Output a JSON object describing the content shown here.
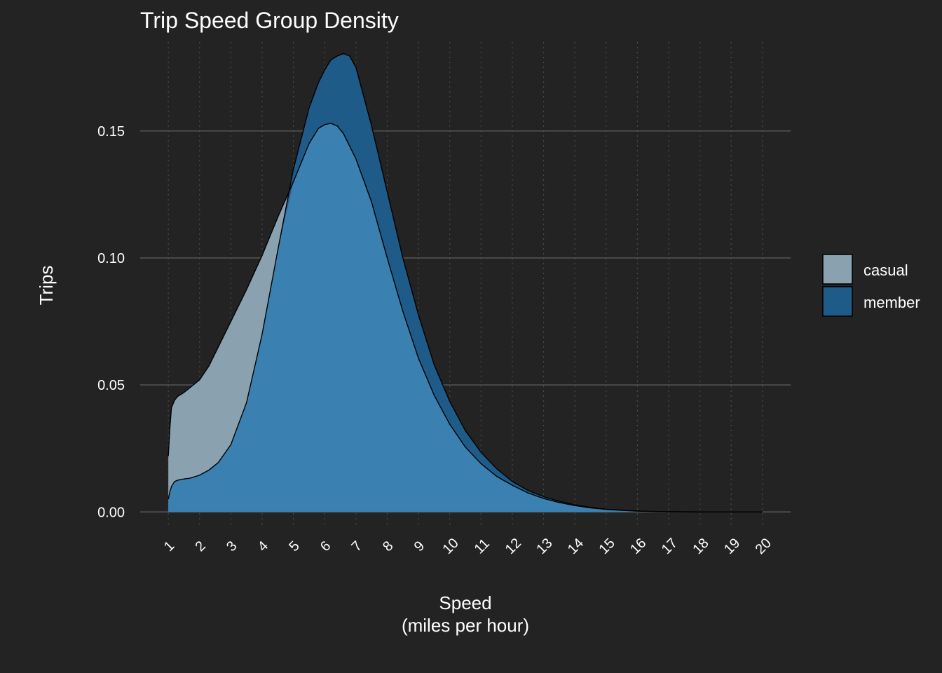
{
  "colors": {
    "background": "#232323",
    "grid_major": "#5a5a5a",
    "grid_minor": "#4a4a4a",
    "casual_fill": "#8aa2b0",
    "member_fill": "#1f5b88",
    "overlap_fill": "#3a80b0",
    "outline": "#000000",
    "text": "#ffffff"
  },
  "chart_data": {
    "type": "area",
    "title": "Trip Speed Group Density",
    "xlabel": [
      "Speed",
      "(miles per hour)"
    ],
    "ylabel": "Trips",
    "xlim": [
      0.1,
      20.9
    ],
    "ylim": [
      -0.006,
      0.185
    ],
    "x_ticks": [
      1,
      2,
      3,
      4,
      5,
      6,
      7,
      8,
      9,
      10,
      11,
      12,
      13,
      14,
      15,
      16,
      17,
      18,
      19,
      20
    ],
    "y_ticks": [
      0.0,
      0.05,
      0.1,
      0.15
    ],
    "y_tick_labels": [
      "0.00",
      "0.05",
      "0.10",
      "0.15"
    ],
    "grid": true,
    "legend_position": "right",
    "series": [
      {
        "name": "casual",
        "x": [
          1.0,
          1.05,
          1.1,
          1.2,
          1.3,
          1.5,
          1.7,
          2.0,
          2.3,
          2.6,
          3.0,
          3.5,
          4.0,
          4.5,
          5.0,
          5.5,
          5.8,
          6.0,
          6.2,
          6.4,
          6.6,
          6.8,
          7.0,
          7.5,
          8.0,
          8.5,
          9.0,
          9.5,
          10.0,
          10.5,
          11.0,
          11.5,
          12.0,
          12.5,
          13.0,
          13.5,
          14.0,
          14.5,
          15.0,
          15.5,
          16.0,
          16.5,
          17.0,
          17.5,
          18.0,
          18.5,
          19.0,
          19.5,
          20.0
        ],
        "values": [
          0.022,
          0.033,
          0.041,
          0.044,
          0.0455,
          0.047,
          0.049,
          0.052,
          0.0575,
          0.065,
          0.075,
          0.0875,
          0.101,
          0.116,
          0.13,
          0.145,
          0.151,
          0.1525,
          0.153,
          0.152,
          0.149,
          0.144,
          0.139,
          0.122,
          0.1,
          0.079,
          0.0605,
          0.046,
          0.0345,
          0.0255,
          0.019,
          0.014,
          0.0105,
          0.0075,
          0.0053,
          0.0037,
          0.0025,
          0.0016,
          0.001,
          0.0006,
          0.0003,
          0.0002,
          0.0001,
          5e-05,
          0.0,
          0.0,
          0.0,
          0.0,
          0.0
        ]
      },
      {
        "name": "member",
        "x": [
          1.0,
          1.05,
          1.1,
          1.2,
          1.3,
          1.5,
          1.7,
          2.0,
          2.3,
          2.6,
          3.0,
          3.5,
          4.0,
          4.5,
          5.0,
          5.5,
          5.8,
          6.0,
          6.2,
          6.4,
          6.6,
          6.8,
          7.0,
          7.5,
          8.0,
          8.5,
          9.0,
          9.5,
          10.0,
          10.5,
          11.0,
          11.5,
          12.0,
          12.5,
          13.0,
          13.5,
          14.0,
          14.5,
          15.0,
          15.5,
          16.0,
          16.5,
          17.0,
          17.5,
          18.0,
          18.5,
          19.0,
          19.5,
          20.0
        ],
        "values": [
          0.005,
          0.008,
          0.01,
          0.012,
          0.0125,
          0.013,
          0.0133,
          0.0145,
          0.0165,
          0.0195,
          0.0265,
          0.043,
          0.07,
          0.103,
          0.135,
          0.159,
          0.169,
          0.174,
          0.178,
          0.1795,
          0.1805,
          0.1795,
          0.175,
          0.152,
          0.126,
          0.1,
          0.0775,
          0.058,
          0.0435,
          0.032,
          0.0235,
          0.017,
          0.012,
          0.0085,
          0.006,
          0.0042,
          0.0028,
          0.0018,
          0.0011,
          0.0007,
          0.0004,
          0.0002,
          0.0001,
          5e-05,
          0.0,
          0.0,
          0.0,
          0.0,
          0.0
        ]
      }
    ]
  }
}
